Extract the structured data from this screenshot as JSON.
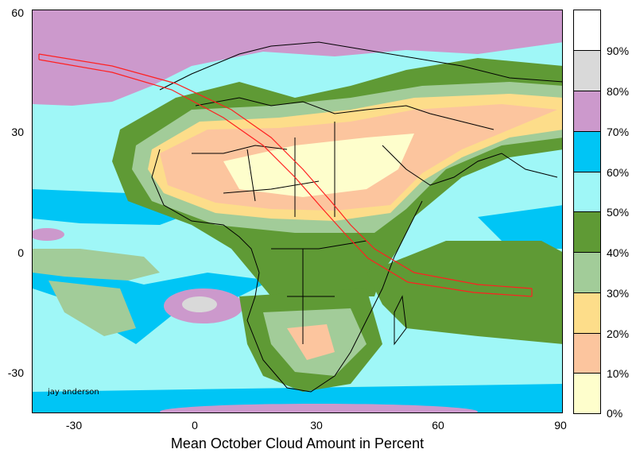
{
  "caption": "Mean October Cloud Amount in Percent",
  "credit": "jay anderson",
  "y_axis": {
    "ticks": [
      "60",
      "30",
      "0",
      "-30"
    ]
  },
  "x_axis": {
    "ticks": [
      "-30",
      "0",
      "30",
      "60",
      "90"
    ]
  },
  "legend": {
    "labels": [
      "90%",
      "80%",
      "70%",
      "60%",
      "50%",
      "40%",
      "30%",
      "20%",
      "10%",
      "0%"
    ],
    "colors": [
      "#ffffff",
      "#d9d9d9",
      "#cc99cc",
      "#00c5f5",
      "#9ff7f7",
      "#5f9a35",
      "#a2cc99",
      "#fddd8a",
      "#fcc59e",
      "#fefecc"
    ]
  },
  "map_colors": {
    "ocean": "#9ff7f7",
    "cloud_70": "#cc99cc",
    "cloud_60": "#00c5f5",
    "cloud_40": "#5f9a35",
    "cloud_30": "#a2cc99",
    "cloud_20": "#fddd8a",
    "cloud_10": "#fcc59e",
    "cloud_0": "#fefecc",
    "cloud_80": "#d9d9d9",
    "track": "#ff2020"
  }
}
